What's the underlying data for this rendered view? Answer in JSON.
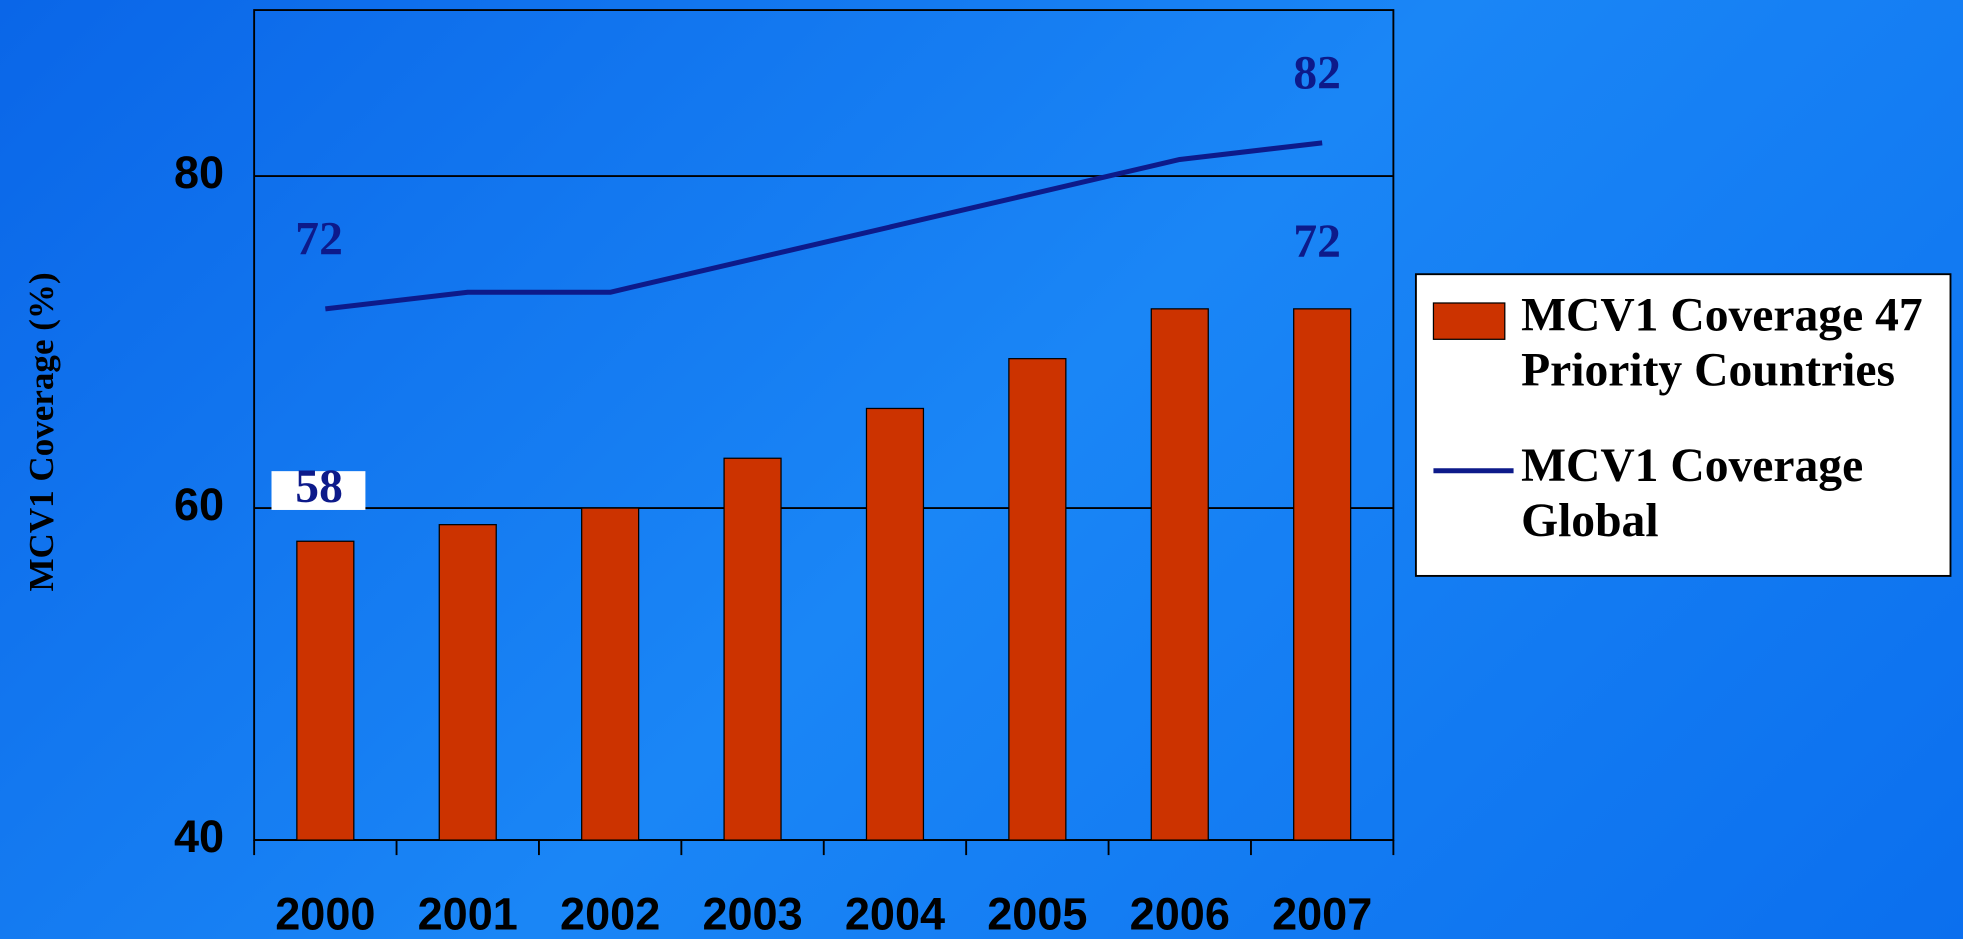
{
  "chart_data": {
    "type": "bar-line",
    "y_label": "MCV1 Coverage (%)",
    "categories": [
      "2000",
      "2001",
      "2002",
      "2003",
      "2004",
      "2005",
      "2006",
      "2007"
    ],
    "series": [
      {
        "name": "MCV1 Coverage 47 Priority Countries",
        "type": "bar",
        "color": "#cc3300",
        "values": [
          58,
          59,
          60,
          63,
          66,
          69,
          72,
          72
        ],
        "value_labels": [
          "58",
          null,
          null,
          null,
          null,
          null,
          null,
          "72"
        ]
      },
      {
        "name": "MCV1 Coverage Global",
        "type": "line",
        "color": "#0d1a8a",
        "values": [
          72,
          73,
          73,
          75,
          77,
          79,
          81,
          82
        ],
        "value_labels": [
          "72",
          null,
          null,
          null,
          null,
          null,
          null,
          "82"
        ]
      }
    ],
    "ylim": [
      40,
      90
    ],
    "yticks": [
      40,
      60,
      80
    ],
    "grid": true
  }
}
